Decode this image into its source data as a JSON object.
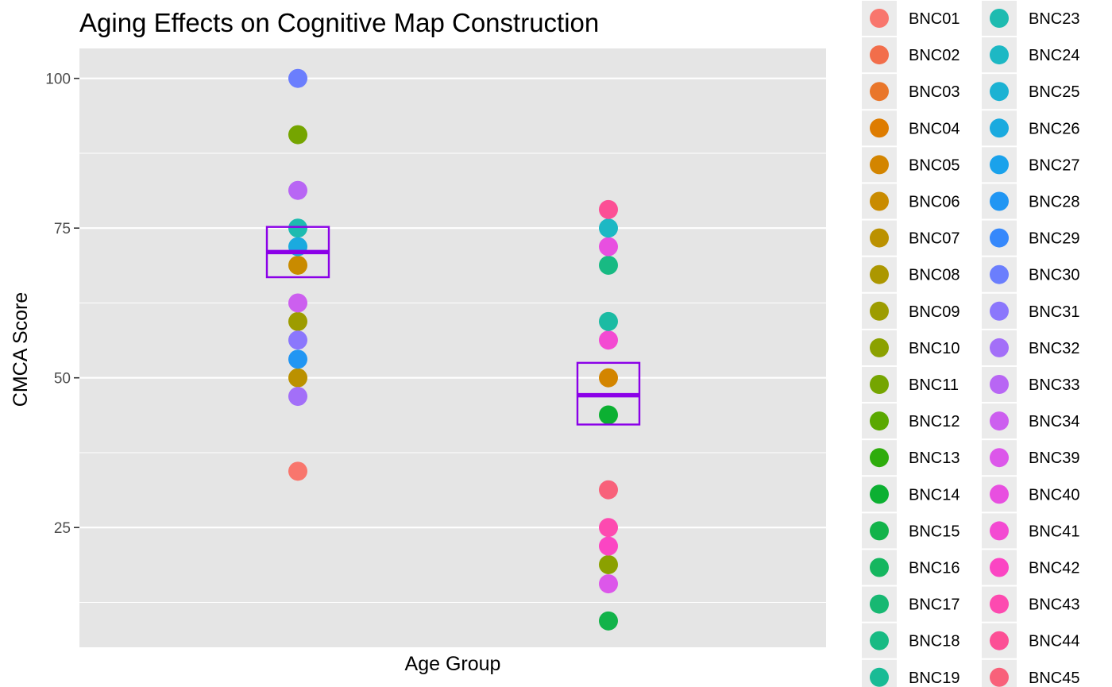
{
  "chart_data": {
    "type": "scatter",
    "title": "Aging Effects on Cognitive Map Construction",
    "xlabel": "Age Group",
    "ylabel": "CMCA Score",
    "ylim": [
      5,
      105
    ],
    "yticks": [
      25,
      50,
      75,
      100
    ],
    "grid": true,
    "legend_placement": "right",
    "panel_color": "#e5e5e5",
    "summary_color": "#8b00e8",
    "groups": [
      {
        "box": {
          "mean": 71,
          "lower": 66.8,
          "upper": 75.2
        },
        "points": [
          {
            "id": "BNC01",
            "y": 34.4
          },
          {
            "id": "BNC07",
            "y": 50
          },
          {
            "id": "BNC09",
            "y": 59.4
          },
          {
            "id": "BNC06",
            "y": 68.8
          },
          {
            "id": "BNC11",
            "y": 90.6
          },
          {
            "id": "BNC23",
            "y": 75
          },
          {
            "id": "BNC26",
            "y": 71.9
          },
          {
            "id": "BNC28",
            "y": 53.1
          },
          {
            "id": "BNC31",
            "y": 56.3
          },
          {
            "id": "BNC30",
            "y": 100
          },
          {
            "id": "BNC32",
            "y": 46.9
          },
          {
            "id": "BNC33",
            "y": 81.3
          },
          {
            "id": "BNC34",
            "y": 62.5
          }
        ]
      },
      {
        "box": {
          "mean": 47.1,
          "lower": 42.2,
          "upper": 52.5
        },
        "points": [
          {
            "id": "BNC15",
            "y": 9.4
          },
          {
            "id": "BNC10",
            "y": 18.8
          },
          {
            "id": "BNC39",
            "y": 15.6
          },
          {
            "id": "BNC42",
            "y": 21.9
          },
          {
            "id": "BNC43",
            "y": 25
          },
          {
            "id": "BNC45",
            "y": 31.3
          },
          {
            "id": "BNC14",
            "y": 43.8
          },
          {
            "id": "BNC05",
            "y": 50
          },
          {
            "id": "BNC41",
            "y": 56.3
          },
          {
            "id": "BNC22",
            "y": 59.4
          },
          {
            "id": "BNC18",
            "y": 68.8
          },
          {
            "id": "BNC40",
            "y": 71.9
          },
          {
            "id": "BNC24",
            "y": 75
          },
          {
            "id": "BNC44",
            "y": 78.1
          }
        ]
      }
    ],
    "legend": {
      "columns": [
        [
          {
            "label": "BNC01",
            "color": "#f8766d"
          },
          {
            "label": "BNC02",
            "color": "#f26e4b"
          },
          {
            "label": "BNC03",
            "color": "#e9762a"
          },
          {
            "label": "BNC04",
            "color": "#de7c00"
          },
          {
            "label": "BNC05",
            "color": "#d38500"
          },
          {
            "label": "BNC06",
            "color": "#c98b00"
          },
          {
            "label": "BNC07",
            "color": "#bb9100"
          },
          {
            "label": "BNC08",
            "color": "#ac9700"
          },
          {
            "label": "BNC09",
            "color": "#9d9c00"
          },
          {
            "label": "BNC10",
            "color": "#8ba100"
          },
          {
            "label": "BNC11",
            "color": "#75a500"
          },
          {
            "label": "BNC12",
            "color": "#5aa800"
          },
          {
            "label": "BNC13",
            "color": "#2eac0c"
          },
          {
            "label": "BNC14",
            "color": "#0cb032"
          },
          {
            "label": "BNC15",
            "color": "#12b34a"
          },
          {
            "label": "BNC16",
            "color": "#15b65f"
          },
          {
            "label": "BNC17",
            "color": "#17b872"
          },
          {
            "label": "BNC18",
            "color": "#18ba83"
          },
          {
            "label": "BNC19",
            "color": "#19bb95"
          }
        ],
        [
          {
            "label": "BNC23",
            "color": "#1ebbb0"
          },
          {
            "label": "BNC24",
            "color": "#1db8c4"
          },
          {
            "label": "BNC25",
            "color": "#1cb2d3"
          },
          {
            "label": "BNC26",
            "color": "#1aaadf"
          },
          {
            "label": "BNC27",
            "color": "#1aa2eb"
          },
          {
            "label": "BNC28",
            "color": "#2196f3"
          },
          {
            "label": "BNC29",
            "color": "#3688fb"
          },
          {
            "label": "BNC30",
            "color": "#6b7efd"
          },
          {
            "label": "BNC31",
            "color": "#8b77fc"
          },
          {
            "label": "BNC32",
            "color": "#a36ff8"
          },
          {
            "label": "BNC33",
            "color": "#b866f4"
          },
          {
            "label": "BNC34",
            "color": "#cc5fef"
          },
          {
            "label": "BNC39",
            "color": "#dc57ea"
          },
          {
            "label": "BNC40",
            "color": "#e84fe0"
          },
          {
            "label": "BNC41",
            "color": "#f34ad2"
          },
          {
            "label": "BNC42",
            "color": "#fb45c3"
          },
          {
            "label": "BNC43",
            "color": "#fd4ab0"
          },
          {
            "label": "BNC44",
            "color": "#fc4f95"
          },
          {
            "label": "BNC45",
            "color": "#f8617a"
          }
        ]
      ]
    },
    "extra_colors": {
      "BNC22": "#1bbba3"
    }
  }
}
